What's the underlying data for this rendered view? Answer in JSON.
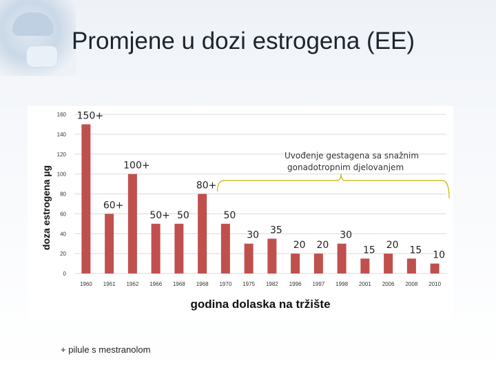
{
  "slide": {
    "title": "Promjene u dozi estrogena (EE)",
    "footnote": "+ pilule s mestranolom"
  },
  "annotation": {
    "text_line1": "Uvođenje gestagena sa snažnim",
    "text_line2": "gonadotropnim djelovanjem"
  },
  "colors": {
    "bar": "#c0504d",
    "grid": "#d9d9d9",
    "brace": "#c8b400",
    "axis_text": "#333333"
  },
  "icons": [
    "surgeon-photo"
  ],
  "chart_data": {
    "type": "bar",
    "categories": [
      "1960",
      "1961",
      "1962",
      "1966",
      "1968",
      "1968",
      "1970",
      "1975",
      "1982",
      "1996",
      "1997",
      "1998",
      "2001",
      "2006",
      "2008",
      "2010"
    ],
    "values": [
      150,
      60,
      100,
      50,
      50,
      80,
      50,
      30,
      35,
      20,
      20,
      30,
      15,
      20,
      15,
      10
    ],
    "data_labels": [
      "150+",
      "60+",
      "100+",
      "50+",
      "50",
      "80+",
      "50",
      "30",
      "35",
      "20",
      "20",
      "30",
      "15",
      "20",
      "15",
      "10"
    ],
    "ylim": [
      0,
      160
    ],
    "yticks": [
      0,
      20,
      40,
      60,
      80,
      100,
      120,
      140,
      160
    ],
    "ylabel": "doza estrogena µg",
    "xlabel": "godina dolaska na tržište",
    "grid": true
  }
}
